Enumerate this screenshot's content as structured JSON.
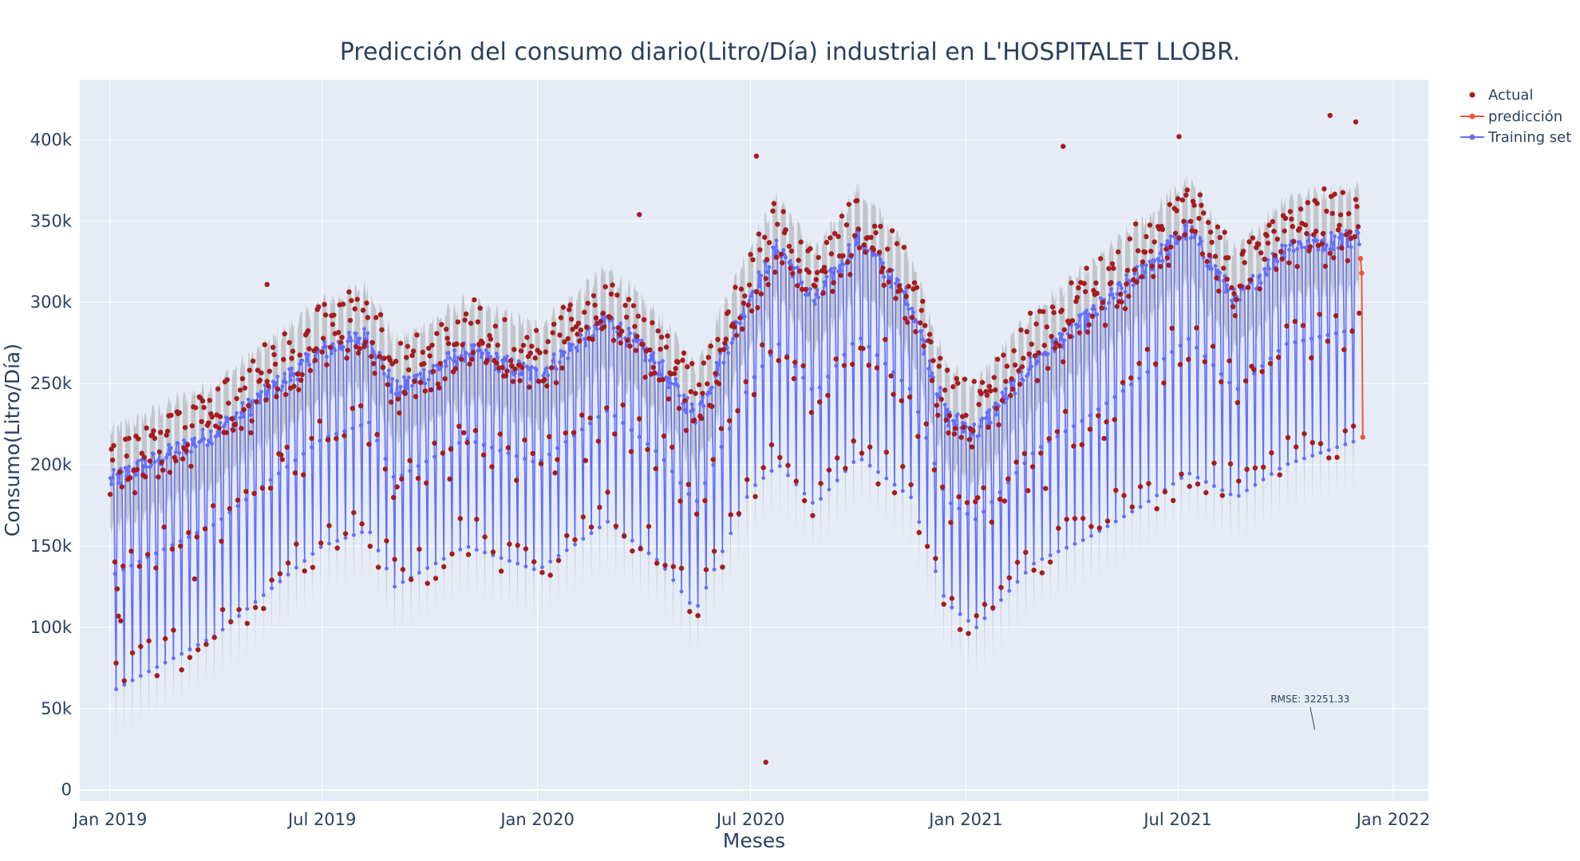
{
  "chart_data": {
    "type": "line",
    "title": "Predicción del consumo diario(Litro/Día) industrial en L'HOSPITALET LLOBR.",
    "xlabel": "Meses",
    "ylabel": "Consumo(Litro/Día)",
    "x_type": "date",
    "xlim": [
      "2018-12-06",
      "2022-01-31"
    ],
    "ylim": [
      -7000,
      437000
    ],
    "x_ticks": [
      {
        "value": "2019-01-01",
        "label": "Jan 2019"
      },
      {
        "value": "2019-07-01",
        "label": "Jul 2019"
      },
      {
        "value": "2020-01-01",
        "label": "Jan 2020"
      },
      {
        "value": "2020-07-01",
        "label": "Jul 2020"
      },
      {
        "value": "2021-01-01",
        "label": "Jan 2021"
      },
      {
        "value": "2021-07-01",
        "label": "Jul 2021"
      },
      {
        "value": "2022-01-01",
        "label": "Jan 2022"
      }
    ],
    "y_ticks": [
      {
        "value": 0,
        "label": "0"
      },
      {
        "value": 50000,
        "label": "50k"
      },
      {
        "value": 100000,
        "label": "100k"
      },
      {
        "value": 150000,
        "label": "150k"
      },
      {
        "value": 200000,
        "label": "200k"
      },
      {
        "value": 250000,
        "label": "250k"
      },
      {
        "value": 300000,
        "label": "300k"
      },
      {
        "value": 350000,
        "label": "350k"
      },
      {
        "value": 400000,
        "label": "400k"
      }
    ],
    "grid": true,
    "legend_position": "top-right",
    "series": [
      {
        "name": "Actual",
        "mode": "markers",
        "color": "#a51c1c"
      },
      {
        "name": "predicción",
        "mode": "lines+markers",
        "color": "#ef553b"
      },
      {
        "name": "Training set",
        "mode": "lines+markers",
        "color": "#636efa",
        "band_color": "#a6a6a6"
      }
    ],
    "trend_knots": [
      {
        "date": "2019-01-01",
        "weekday": 190000,
        "weekend": 60000
      },
      {
        "date": "2019-04-01",
        "weekday": 220000,
        "weekend": 95000
      },
      {
        "date": "2019-07-01",
        "weekday": 270000,
        "weekend": 150000
      },
      {
        "date": "2019-08-10",
        "weekday": 280000,
        "weekend": 160000
      },
      {
        "date": "2019-09-01",
        "weekday": 245000,
        "weekend": 125000
      },
      {
        "date": "2019-11-01",
        "weekday": 270000,
        "weekend": 150000
      },
      {
        "date": "2020-01-01",
        "weekday": 255000,
        "weekend": 135000
      },
      {
        "date": "2020-03-01",
        "weekday": 290000,
        "weekend": 165000
      },
      {
        "date": "2020-04-15",
        "weekday": 260000,
        "weekend": 140000
      },
      {
        "date": "2020-05-15",
        "weekday": 230000,
        "weekend": 110000
      },
      {
        "date": "2020-07-01",
        "weekday": 305000,
        "weekend": 185000
      },
      {
        "date": "2020-07-25",
        "weekday": 335000,
        "weekend": 200000
      },
      {
        "date": "2020-08-25",
        "weekday": 300000,
        "weekend": 175000
      },
      {
        "date": "2020-10-01",
        "weekday": 340000,
        "weekend": 205000
      },
      {
        "date": "2020-11-15",
        "weekday": 300000,
        "weekend": 180000
      },
      {
        "date": "2020-12-15",
        "weekday": 230000,
        "weekend": 115000
      },
      {
        "date": "2021-01-10",
        "weekday": 220000,
        "weekend": 100000
      },
      {
        "date": "2021-03-01",
        "weekday": 265000,
        "weekend": 140000
      },
      {
        "date": "2021-04-15",
        "weekday": 290000,
        "weekend": 155000
      },
      {
        "date": "2021-06-01",
        "weekday": 320000,
        "weekend": 175000
      },
      {
        "date": "2021-07-10",
        "weekday": 345000,
        "weekend": 195000
      },
      {
        "date": "2021-08-20",
        "weekday": 300000,
        "weekend": 180000
      },
      {
        "date": "2021-10-01",
        "weekday": 335000,
        "weekend": 200000
      },
      {
        "date": "2021-12-01",
        "weekday": 340000,
        "weekend": 215000
      }
    ],
    "training_end": "2021-12-03",
    "band_halfwidth": 30000,
    "prediccion": [
      {
        "x": "2021-12-04",
        "y": 327000
      },
      {
        "x": "2021-12-05",
        "y": 318000
      },
      {
        "x": "2021-12-06",
        "y": 217000
      }
    ],
    "actual_outliers": [
      {
        "x": "2020-07-14",
        "y": 17000
      },
      {
        "x": "2021-03-25",
        "y": 396000
      },
      {
        "x": "2021-07-02",
        "y": 402000
      },
      {
        "x": "2021-11-08",
        "y": 415000
      },
      {
        "x": "2021-11-30",
        "y": 411000
      },
      {
        "x": "2020-07-06",
        "y": 390000
      },
      {
        "x": "2019-05-15",
        "y": 311000
      },
      {
        "x": "2020-03-28",
        "y": 354000
      }
    ],
    "annotations": [
      {
        "text": "RMSE: 32251.33",
        "x": "2021-10-26",
        "y": 37000,
        "arrow_from_y": 51000,
        "arrow_from_x": "2021-10-22"
      }
    ]
  }
}
